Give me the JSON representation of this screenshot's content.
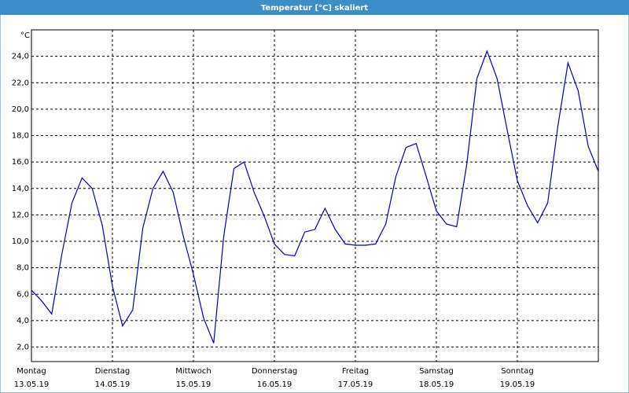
{
  "chart_data": {
    "type": "line",
    "title": "Temperatur [°C] skaliert",
    "y_label": "°C",
    "x": [
      0,
      0.125,
      0.25,
      0.375,
      0.5,
      0.625,
      0.75,
      0.875,
      1,
      1.125,
      1.25,
      1.375,
      1.5,
      1.625,
      1.75,
      1.875,
      2,
      2.125,
      2.25,
      2.375,
      2.5,
      2.625,
      2.75,
      2.875,
      3,
      3.125,
      3.25,
      3.375,
      3.5,
      3.625,
      3.75,
      3.875,
      4,
      4.125,
      4.25,
      4.375,
      4.5,
      4.625,
      4.75,
      4.875,
      5,
      5.125,
      5.25,
      5.375,
      5.5,
      5.625,
      5.75,
      5.875,
      6,
      6.125,
      6.25,
      6.375,
      6.5,
      6.625,
      6.75,
      6.875,
      7
    ],
    "values": [
      6.3,
      5.5,
      4.5,
      9.0,
      12.9,
      14.8,
      14.0,
      11.2,
      6.6,
      3.6,
      4.8,
      11.0,
      14.0,
      15.3,
      13.7,
      10.4,
      7.5,
      4.2,
      2.3,
      10.4,
      15.5,
      16.0,
      13.7,
      11.9,
      9.8,
      9.0,
      8.9,
      10.7,
      10.9,
      12.5,
      10.9,
      9.8,
      9.7,
      9.7,
      9.8,
      11.3,
      14.9,
      17.1,
      17.4,
      14.9,
      12.3,
      11.3,
      11.1,
      15.8,
      22.3,
      24.4,
      22.3,
      18.4,
      14.6,
      12.7,
      11.4,
      12.9,
      18.7,
      23.5,
      21.4,
      17.2,
      15.3
    ],
    "color": "#0000c0",
    "xlim": [
      0,
      7
    ],
    "xticks": [
      {
        "value": 0,
        "label": "Montag",
        "sublabel": "13.05.19"
      },
      {
        "value": 1,
        "label": "Dienstag",
        "sublabel": "14.05.19"
      },
      {
        "value": 2,
        "label": "Mittwoch",
        "sublabel": "15.05.19"
      },
      {
        "value": 3,
        "label": "Donnerstag",
        "sublabel": "16.05.19"
      },
      {
        "value": 4,
        "label": "Freitag",
        "sublabel": "17.05.19"
      },
      {
        "value": 5,
        "label": "Samstag",
        "sublabel": "18.05.19"
      },
      {
        "value": 6,
        "label": "Sonntag",
        "sublabel": "19.05.19"
      }
    ],
    "ylim": [
      0.9,
      26
    ],
    "yticks": [
      {
        "value": 2,
        "label": "2,0"
      },
      {
        "value": 4,
        "label": "4,0"
      },
      {
        "value": 6,
        "label": "6,0"
      },
      {
        "value": 8,
        "label": "8,0"
      },
      {
        "value": 10,
        "label": "10,0"
      },
      {
        "value": 12,
        "label": "12,0"
      },
      {
        "value": 14,
        "label": "14,0"
      },
      {
        "value": 16,
        "label": "16,0"
      },
      {
        "value": 18,
        "label": "18,0"
      },
      {
        "value": 20,
        "label": "20,0"
      },
      {
        "value": 22,
        "label": "22,0"
      },
      {
        "value": 24,
        "label": "24,0"
      }
    ],
    "grid": true
  }
}
